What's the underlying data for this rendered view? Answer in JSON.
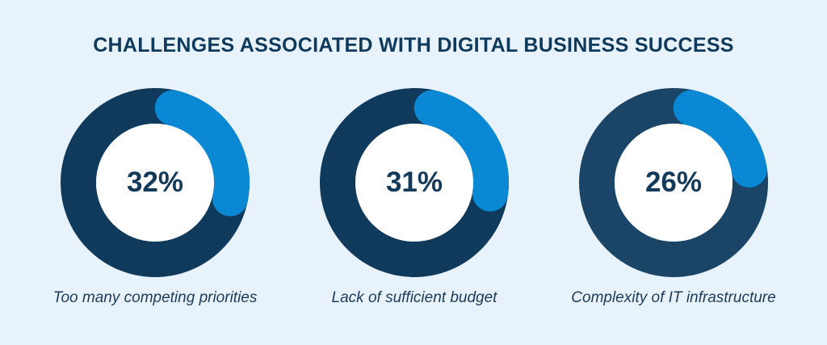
{
  "title": "CHALLENGES ASSOCIATED WITH DIGITAL BUSINESS SUCCESS",
  "colors": {
    "background": "#e8f2fa",
    "title": "#0f3a5c",
    "track": [
      "#0f3a5c",
      "#0f3a5c",
      "#1b4567"
    ],
    "accent": "#0a88d4",
    "inner": "#ffffff"
  },
  "chart_data": [
    {
      "type": "pie",
      "value": 32,
      "label": "32%",
      "caption": "Too many competing priorities"
    },
    {
      "type": "pie",
      "value": 31,
      "label": "31%",
      "caption": "Lack of sufficient budget"
    },
    {
      "type": "pie",
      "value": 26,
      "label": "26%",
      "caption": "Complexity of IT infrastructure"
    }
  ]
}
